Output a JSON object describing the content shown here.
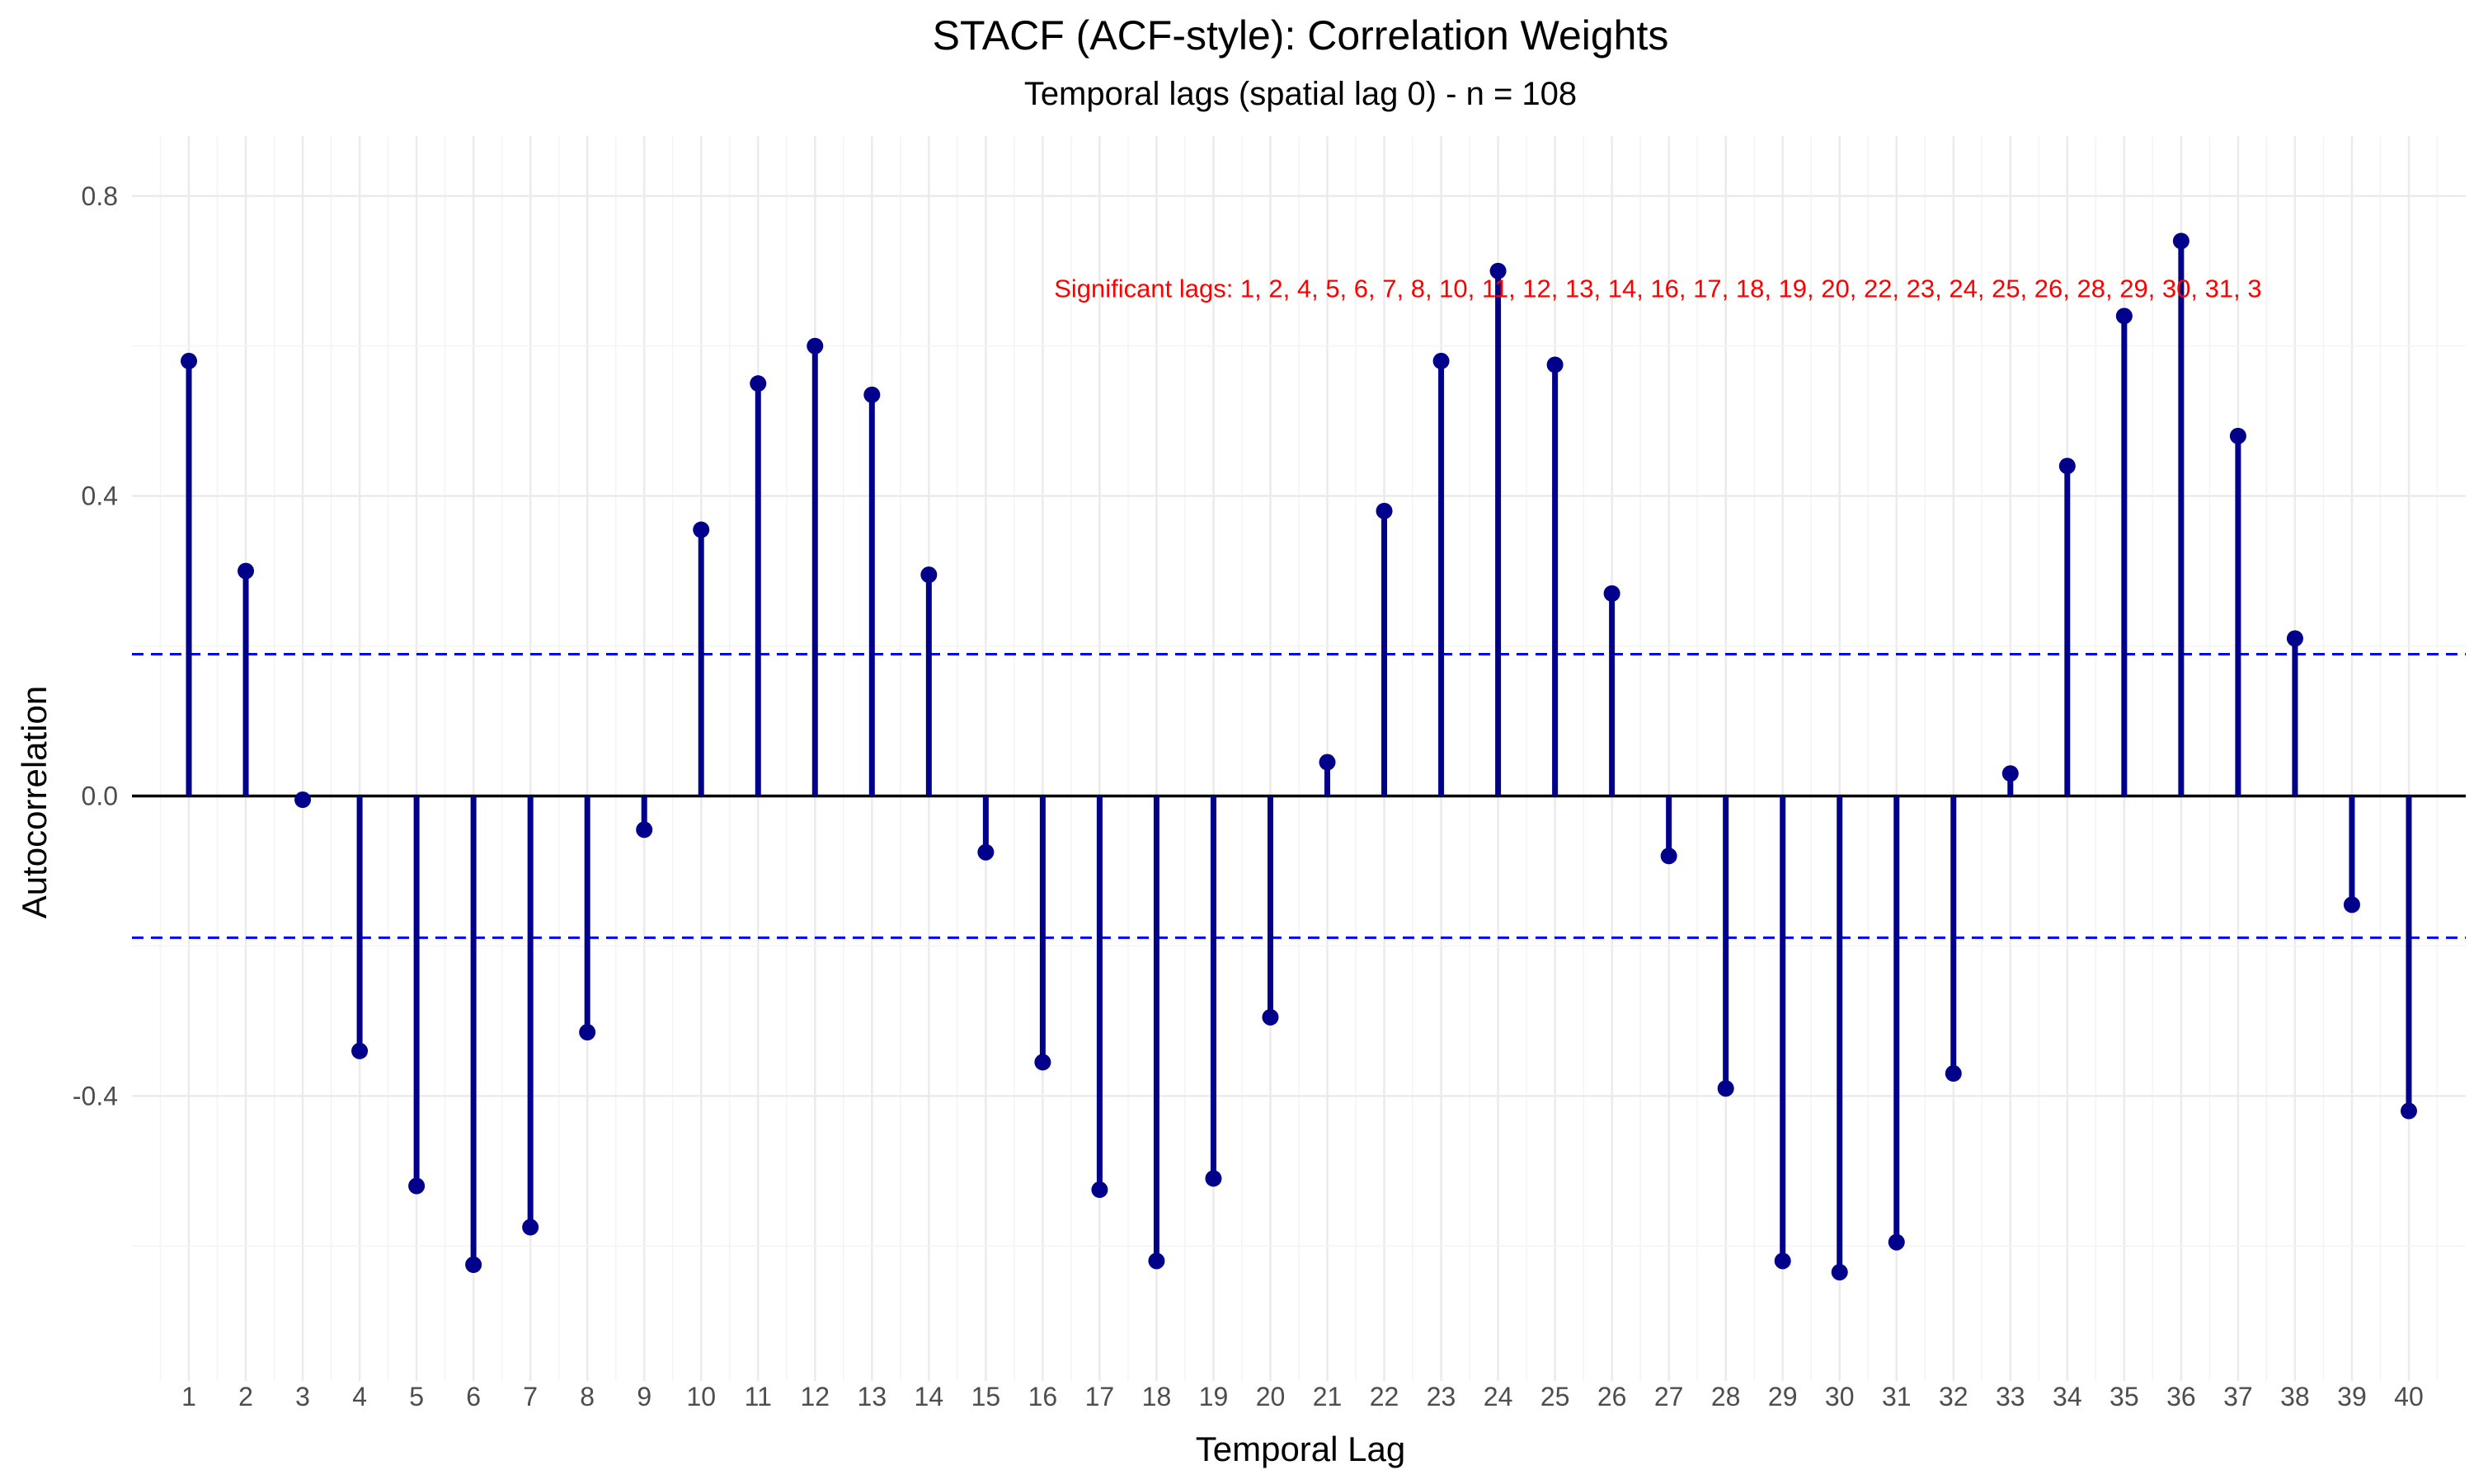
{
  "chart_data": {
    "type": "bar",
    "title": "STACF (ACF-style): Correlation Weights",
    "subtitle": "Temporal lags (spatial lag 0) - n = 108",
    "xlabel": "Temporal Lag",
    "ylabel": "Autocorrelation",
    "x": [
      1,
      2,
      3,
      4,
      5,
      6,
      7,
      8,
      9,
      10,
      11,
      12,
      13,
      14,
      15,
      16,
      17,
      18,
      19,
      20,
      21,
      22,
      23,
      24,
      25,
      26,
      27,
      28,
      29,
      30,
      31,
      32,
      33,
      34,
      35,
      36,
      37,
      38,
      39,
      40
    ],
    "values": [
      0.58,
      0.3,
      -0.005,
      -0.34,
      -0.52,
      -0.625,
      -0.575,
      -0.315,
      -0.045,
      0.355,
      0.55,
      0.6,
      0.535,
      0.295,
      -0.075,
      -0.355,
      -0.525,
      -0.62,
      -0.51,
      -0.295,
      0.045,
      0.38,
      0.58,
      0.7,
      0.575,
      0.27,
      -0.08,
      -0.39,
      -0.62,
      -0.635,
      -0.595,
      -0.37,
      0.03,
      0.44,
      0.64,
      0.74,
      0.48,
      0.21,
      -0.145,
      -0.42
    ],
    "xlim": [
      0,
      41
    ],
    "ylim": [
      -0.78,
      0.88
    ],
    "yticks": [
      "0.8",
      "0.4",
      "0.0",
      "-0.4"
    ],
    "ytick_values": [
      0.8,
      0.4,
      0.0,
      -0.4
    ],
    "confidence_band": 0.189,
    "grid": true,
    "colors": {
      "stem": "#00008b",
      "point": "#00008b",
      "band": "#0000ff",
      "zero_line": "#000000",
      "annotation": "#ff0000"
    },
    "annotation": {
      "text": "Significant lags: 1, 2, 4, 5, 6, 7, 8, 10, 11, 12, 13, 14, 16, 17, 18, 19, 20, 22, 23, 24, 25, 26, 28, 29, 30, 31, 3",
      "x": 16.2,
      "y": 0.665
    }
  }
}
